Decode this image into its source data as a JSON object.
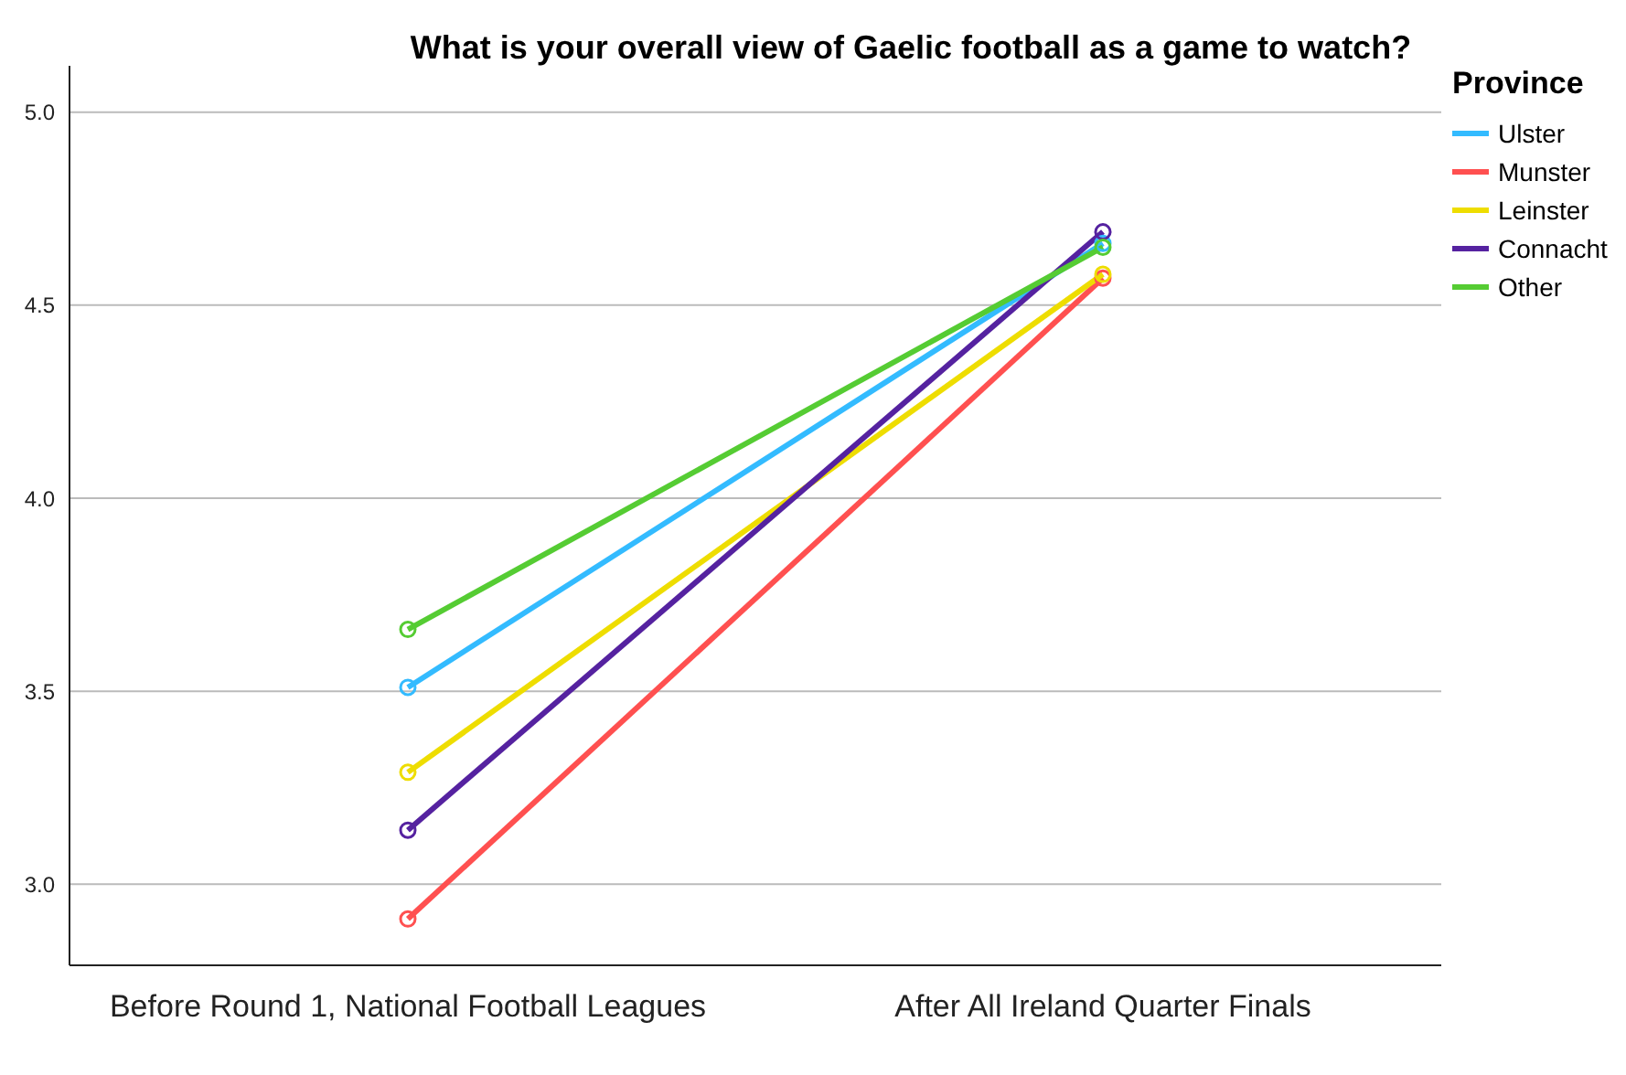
{
  "chart_data": {
    "type": "line",
    "title": "What is your overall view of Gaelic football as a game to watch?",
    "legend_title": "Province",
    "categories": [
      "Before Round 1, National Football Leagues",
      "After All Ireland Quarter Finals"
    ],
    "series": [
      {
        "name": "Ulster",
        "color": "#33bbff",
        "values": [
          3.51,
          4.66
        ]
      },
      {
        "name": "Munster",
        "color": "#ff5050",
        "values": [
          2.91,
          4.57
        ]
      },
      {
        "name": "Leinster",
        "color": "#eedd00",
        "values": [
          3.29,
          4.58
        ]
      },
      {
        "name": "Connacht",
        "color": "#5522a0",
        "values": [
          3.14,
          4.69
        ]
      },
      {
        "name": "Other",
        "color": "#55cc33",
        "values": [
          3.66,
          4.65
        ]
      }
    ],
    "ylim": [
      2.79,
      5.12
    ],
    "yticks": [
      {
        "value": 3,
        "label": "3.0"
      },
      {
        "value": 3.5,
        "label": "3.5"
      },
      {
        "value": 4,
        "label": "4.0"
      },
      {
        "value": 4.5,
        "label": "4.5"
      },
      {
        "value": 5,
        "label": "5.0"
      }
    ],
    "grid": "y",
    "legend": "top right",
    "marker": "circle",
    "line_style": "solid"
  }
}
